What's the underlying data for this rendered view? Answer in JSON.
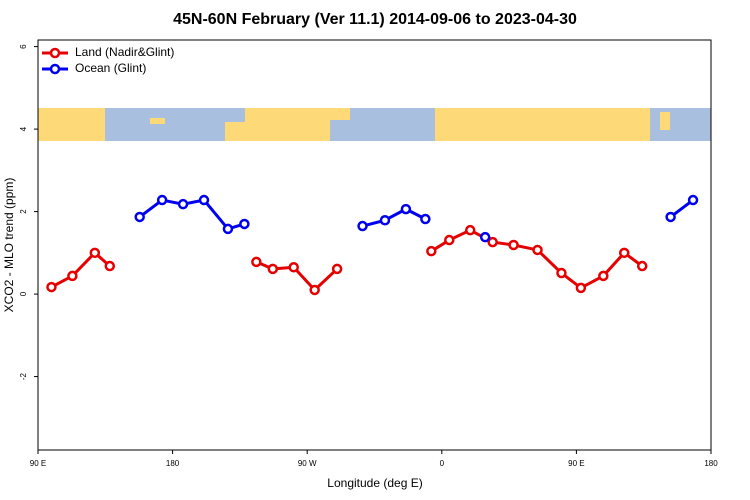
{
  "chart_data": {
    "type": "line",
    "title": "45N-60N February (Ver 11.1)   2014-09-06 to 2023-04-30",
    "x_label": "Longitude (deg E)",
    "y_label": "XCO2 - MLO trend (ppm)",
    "xlim": [
      90,
      540
    ],
    "xticks": [
      {
        "value": 90,
        "label": "90 E"
      },
      {
        "value": 180,
        "label": "180"
      },
      {
        "value": 270,
        "label": "90 W"
      },
      {
        "value": 360,
        "label": "0"
      },
      {
        "value": 450,
        "label": "90 E"
      },
      {
        "value": 540,
        "label": "180"
      }
    ],
    "ylim": [
      -3.78,
      6.16
    ],
    "yticks": [
      -2,
      0,
      2,
      4,
      6
    ],
    "legend": "top-left",
    "series": [
      {
        "name": "Land (Nadir&Glint)",
        "color": "#e60000",
        "x": [
          99,
          113,
          128,
          138,
          null,
          236,
          247,
          261,
          275,
          290,
          null,
          353,
          365,
          379,
          394,
          408,
          424,
          440,
          453,
          468,
          482,
          494
        ],
        "values": [
          0.17,
          0.44,
          1.0,
          0.68,
          null,
          0.78,
          0.61,
          0.65,
          0.1,
          0.61,
          null,
          1.04,
          1.31,
          1.55,
          1.26,
          1.19,
          1.07,
          0.51,
          0.15,
          0.44,
          1.0,
          0.68
        ]
      },
      {
        "name": "Ocean (Glint)",
        "color": "#0000f0",
        "x": [
          158,
          173,
          187,
          201,
          217,
          228,
          null,
          307,
          322,
          336,
          349,
          null,
          389,
          null,
          513,
          528
        ],
        "values": [
          1.87,
          2.28,
          2.18,
          2.28,
          1.58,
          1.7,
          null,
          1.65,
          1.79,
          2.06,
          1.82,
          null,
          1.38,
          null,
          1.87,
          2.28
        ]
      }
    ]
  }
}
